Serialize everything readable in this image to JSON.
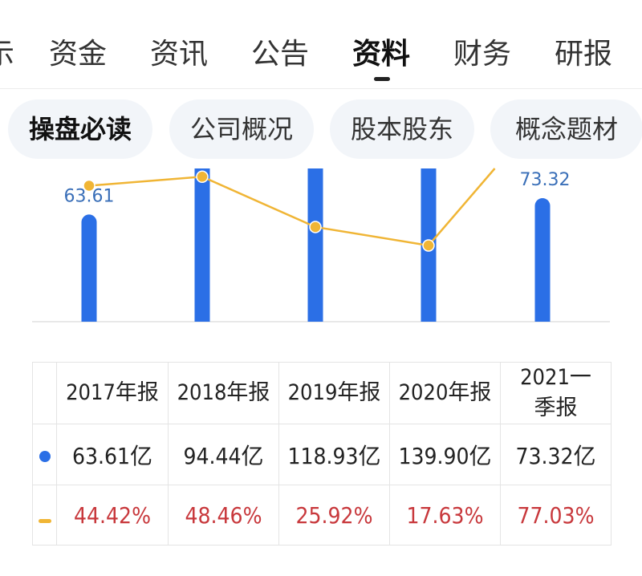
{
  "tabs": [
    {
      "label": "示",
      "active": false
    },
    {
      "label": "资金",
      "active": false
    },
    {
      "label": "资讯",
      "active": false
    },
    {
      "label": "公告",
      "active": false
    },
    {
      "label": "资料",
      "active": true
    },
    {
      "label": "财务",
      "active": false
    },
    {
      "label": "研报",
      "active": false
    }
  ],
  "chips": [
    {
      "label": "操盘必读",
      "active": true
    },
    {
      "label": "公司概况",
      "active": false
    },
    {
      "label": "股本股东",
      "active": false
    },
    {
      "label": "概念题材",
      "active": false
    }
  ],
  "colors": {
    "bar": "#2b6fe6",
    "line": "#f0b535",
    "pct": "#c8383c"
  },
  "chart_data": {
    "type": "bar",
    "categories": [
      "2017年报",
      "2018年报",
      "2019年报",
      "2020年报",
      "2021一季报"
    ],
    "series": [
      {
        "kind": "bar",
        "values": [
          63.61,
          94.44,
          118.93,
          139.9,
          73.32
        ],
        "data_labels": [
          "63.61",
          "",
          "",
          "",
          "73.32"
        ]
      },
      {
        "kind": "line",
        "values": [
          44.42,
          48.46,
          25.92,
          17.63,
          77.03
        ]
      }
    ]
  },
  "table": {
    "headers": [
      "2017年报",
      "2018年报",
      "2019年报",
      "2020年报",
      "2021一季报"
    ],
    "row1": [
      "63.61亿",
      "94.44亿",
      "118.93亿",
      "139.90亿",
      "73.32亿"
    ],
    "row2": [
      "44.42%",
      "48.46%",
      "25.92%",
      "17.63%",
      "77.03%"
    ]
  }
}
